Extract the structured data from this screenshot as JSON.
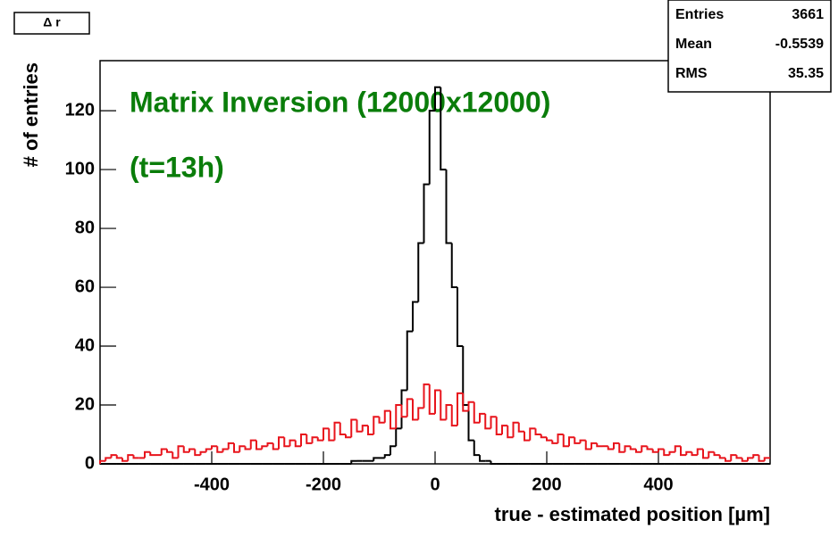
{
  "chart_data": {
    "type": "histogram",
    "title": "Δ r",
    "annotations": [
      "Matrix Inversion (12000x12000)",
      "(t=13h)"
    ],
    "xlabel": "true - estimated position [µm]",
    "ylabel": "# of entries",
    "stats": [
      {
        "label": "Entries",
        "value": 3661
      },
      {
        "label": "Mean",
        "value": -0.5539
      },
      {
        "label": "RMS",
        "value": 35.35
      }
    ],
    "xlim": [
      -600,
      600
    ],
    "xticks": [
      -400,
      -200,
      0,
      200,
      400
    ],
    "ylim": [
      0,
      137
    ],
    "yticks": [
      0,
      20,
      40,
      60,
      80,
      100,
      120
    ],
    "bins": [
      -600,
      -590,
      -580,
      -570,
      -560,
      -550,
      -540,
      -530,
      -520,
      -510,
      -500,
      -490,
      -480,
      -470,
      -460,
      -450,
      -440,
      -430,
      -420,
      -410,
      -400,
      -390,
      -380,
      -370,
      -360,
      -350,
      -340,
      -330,
      -320,
      -310,
      -300,
      -290,
      -280,
      -270,
      -260,
      -250,
      -240,
      -230,
      -220,
      -210,
      -200,
      -190,
      -180,
      -170,
      -160,
      -150,
      -140,
      -130,
      -120,
      -110,
      -100,
      -90,
      -80,
      -70,
      -60,
      -50,
      -40,
      -30,
      -20,
      -10,
      0,
      10,
      20,
      30,
      40,
      50,
      60,
      70,
      80,
      90,
      100,
      110,
      120,
      130,
      140,
      150,
      160,
      170,
      180,
      190,
      200,
      210,
      220,
      230,
      240,
      250,
      260,
      270,
      280,
      290,
      300,
      310,
      320,
      330,
      340,
      350,
      360,
      370,
      380,
      390,
      400,
      410,
      420,
      430,
      440,
      450,
      460,
      470,
      480,
      490,
      500,
      510,
      520,
      530,
      540,
      550,
      560,
      570,
      580,
      590,
      600
    ],
    "series": [
      {
        "color": "#000000",
        "values": [
          0,
          0,
          0,
          0,
          0,
          0,
          0,
          0,
          0,
          0,
          0,
          0,
          0,
          0,
          0,
          0,
          0,
          0,
          0,
          0,
          0,
          0,
          0,
          0,
          0,
          0,
          0,
          0,
          0,
          0,
          0,
          0,
          0,
          0,
          0,
          0,
          0,
          0,
          0,
          0,
          0,
          0,
          0,
          0,
          0,
          1,
          1,
          1,
          1,
          2,
          2,
          3,
          6,
          12,
          25,
          45,
          55,
          75,
          95,
          120,
          128,
          100,
          75,
          60,
          40,
          20,
          8,
          3,
          1,
          1,
          0,
          0,
          0,
          0,
          0,
          0,
          0,
          0,
          0,
          0,
          0,
          0,
          0,
          0,
          0,
          0,
          0,
          0,
          0,
          0,
          0,
          0,
          0,
          0,
          0,
          0,
          0,
          0,
          0,
          0,
          0,
          0,
          0,
          0,
          0,
          0,
          0,
          0,
          0,
          0,
          0,
          0,
          0,
          0,
          0,
          0,
          0,
          0,
          0,
          0
        ]
      },
      {
        "color": "#e8141c",
        "values": [
          1,
          2,
          3,
          2,
          1,
          3,
          2,
          2,
          4,
          3,
          3,
          5,
          4,
          2,
          6,
          4,
          5,
          3,
          4,
          5,
          6,
          4,
          5,
          7,
          4,
          6,
          5,
          8,
          5,
          6,
          7,
          5,
          9,
          6,
          8,
          6,
          10,
          7,
          9,
          8,
          12,
          8,
          14,
          10,
          9,
          15,
          11,
          13,
          10,
          16,
          14,
          18,
          12,
          20,
          16,
          22,
          15,
          19,
          27,
          17,
          25,
          15,
          20,
          13,
          24,
          18,
          21,
          14,
          17,
          12,
          16,
          10,
          13,
          9,
          14,
          11,
          8,
          12,
          10,
          9,
          8,
          7,
          10,
          6,
          9,
          7,
          8,
          5,
          7,
          6,
          6,
          5,
          7,
          4,
          6,
          5,
          4,
          6,
          5,
          4,
          5,
          3,
          4,
          6,
          3,
          4,
          3,
          5,
          2,
          4,
          3,
          2,
          1,
          3,
          2,
          1,
          2,
          3,
          1,
          2
        ]
      }
    ]
  }
}
